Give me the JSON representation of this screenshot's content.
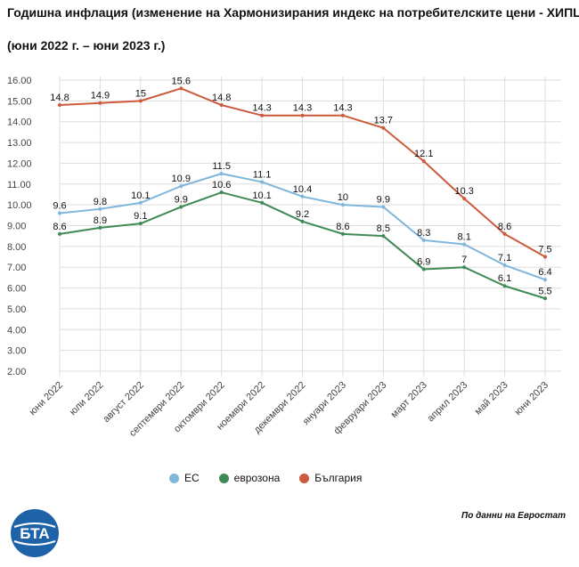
{
  "header": {
    "title": "Годишна инфлация (изменение на Хармонизирания индекс на потребителските цени - ХИПЦ)",
    "subtitle": "(юни 2022 г. – юни 2023 г.)"
  },
  "footer": {
    "source": "По данни на Евростат",
    "logo_text": "БТА"
  },
  "colors": {
    "eu": "#7fb6dc",
    "eurozone": "#3f8a55",
    "bulgaria": "#cc5a3c",
    "grid": "#dddddd",
    "axis_text": "#444444"
  },
  "chart_data": {
    "type": "line",
    "title": "Годишна инфлация (изменение на Хармонизирания индекс на потребителските цени - ХИПЦ)",
    "xlabel": "",
    "ylabel": "",
    "ylim": [
      2,
      16
    ],
    "yticks": [
      "2.00",
      "3.00",
      "4.00",
      "5.00",
      "6.00",
      "7.00",
      "8.00",
      "9.00",
      "10.00",
      "11.00",
      "12.00",
      "13.00",
      "14.00",
      "15.00",
      "16.00"
    ],
    "categories": [
      "юни 2022",
      "юли 2022",
      "август 2022",
      "септември 2022",
      "октомври 2022",
      "ноември 2022",
      "декември 2022",
      "януари 2023",
      "февруари 2023",
      "март 2023",
      "април 2023",
      "май 2023",
      "юни 2023"
    ],
    "legend_position": "bottom-center",
    "series": [
      {
        "name": "ЕС",
        "color": "#7fb6dc",
        "values": [
          9.6,
          9.8,
          10.1,
          10.9,
          11.5,
          11.1,
          10.4,
          10,
          9.9,
          8.3,
          8.1,
          7.1,
          6.4
        ],
        "labels": [
          "9.6",
          "9.8",
          "10.1",
          "10.9",
          "11.5",
          "11.1",
          "10.4",
          "10",
          "9.9",
          "8.3",
          "8.1",
          "7.1",
          "6.4"
        ]
      },
      {
        "name": "еврозона",
        "color": "#3f8a55",
        "values": [
          8.6,
          8.9,
          9.1,
          9.9,
          10.6,
          10.1,
          9.2,
          8.6,
          8.5,
          6.9,
          7,
          6.1,
          5.5
        ],
        "labels": [
          "8.6",
          "8.9",
          "9.1",
          "9.9",
          "10.6",
          "10.1",
          "9.2",
          "8.6",
          "8.5",
          "6.9",
          "7",
          "6.1",
          "5.5"
        ]
      },
      {
        "name": "България",
        "color": "#cc5a3c",
        "values": [
          14.8,
          14.9,
          15,
          15.6,
          14.8,
          14.3,
          14.3,
          14.3,
          13.7,
          12.1,
          10.3,
          8.6,
          7.5
        ],
        "labels": [
          "14.8",
          "14.9",
          "15",
          "15.6",
          "14.8",
          "14.3",
          "14.3",
          "14.3",
          "13.7",
          "12.1",
          "10.3",
          "8.6",
          "7.5"
        ]
      }
    ]
  }
}
